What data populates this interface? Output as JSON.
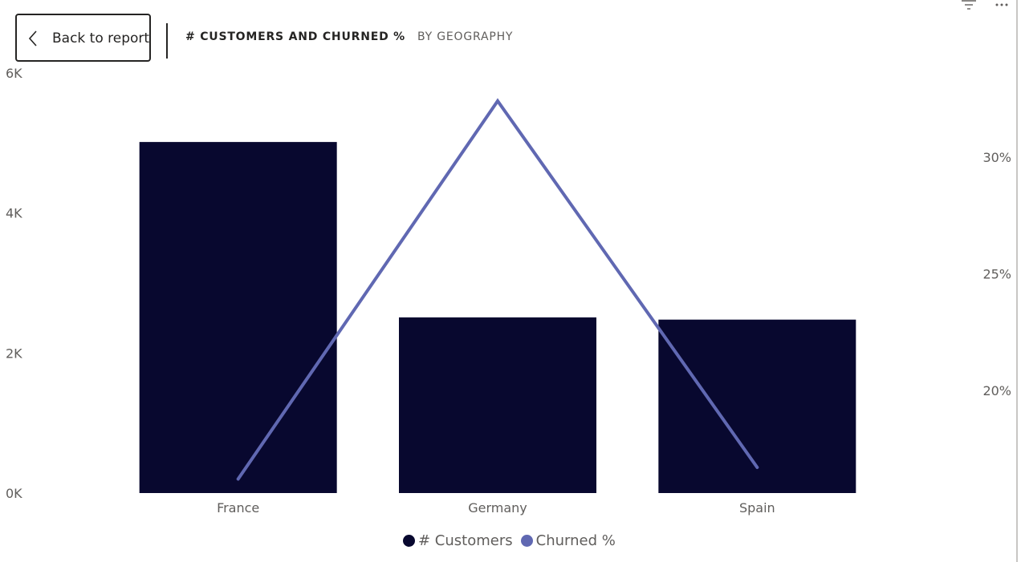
{
  "header": {
    "back_label": "Back to report",
    "tabs": [
      "# CUSTOMERS AND CHURNED %",
      "BY GEOGRAPHY"
    ]
  },
  "colors": {
    "bar": "#08082f",
    "line": "#6068b2"
  },
  "icons": [
    "chevron-left-icon",
    "filter-icon",
    "more-options-icon"
  ],
  "chart_data": {
    "type": "bar",
    "categories": [
      "France",
      "Germany",
      "Spain"
    ],
    "series": [
      {
        "name": "# Customers",
        "type": "bar",
        "axis": "left",
        "values": [
          5014,
          2509,
          2477
        ]
      },
      {
        "name": "Churned %",
        "type": "line",
        "axis": "right",
        "values": [
          16.2,
          32.4,
          16.7
        ]
      }
    ],
    "y_left": {
      "ticks": [
        "0K",
        "2K",
        "4K",
        "6K"
      ],
      "tick_values": [
        0,
        2000,
        4000,
        6000
      ],
      "lim": [
        0,
        6000
      ]
    },
    "y_right": {
      "ticks": [
        "20%",
        "25%",
        "30%"
      ],
      "tick_values": [
        20,
        25,
        30
      ],
      "lim": [
        15.6,
        33.6
      ]
    },
    "grid": false,
    "legend_position": "bottom-center"
  }
}
